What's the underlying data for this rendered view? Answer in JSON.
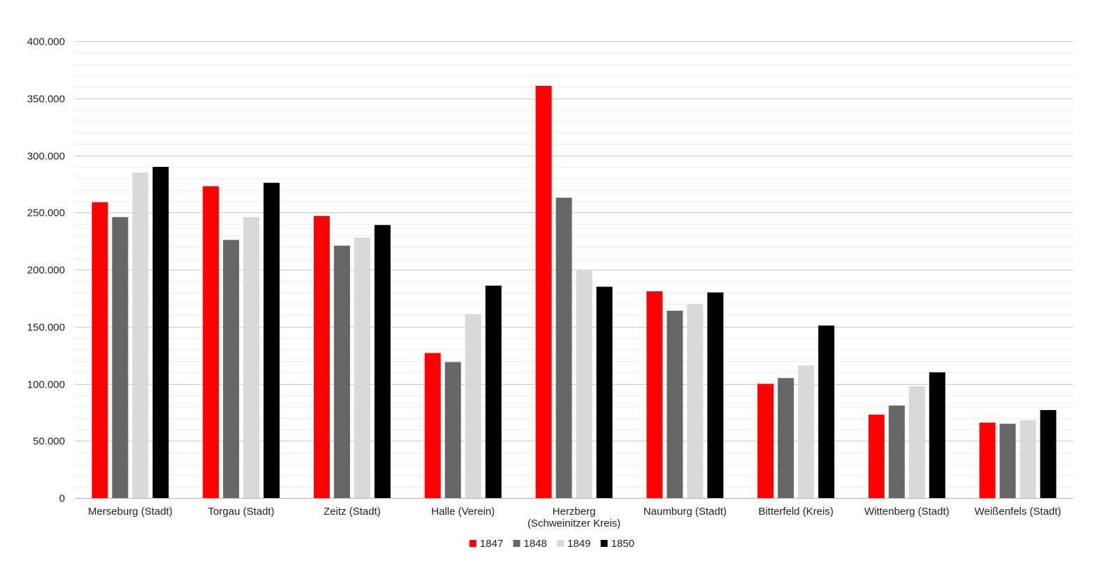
{
  "chart_data": {
    "type": "bar",
    "title": "",
    "xlabel": "",
    "ylabel": "",
    "ylim": [
      0,
      400000
    ],
    "yticks": [
      0,
      50000,
      100000,
      150000,
      200000,
      250000,
      300000,
      350000,
      400000
    ],
    "ytick_labels": [
      "0",
      "50.000",
      "100.000",
      "150.000",
      "200.000",
      "250.000",
      "300.000",
      "350.000",
      "400.000"
    ],
    "minor_grid_step": 10000,
    "grid": true,
    "legend_position": "bottom",
    "categories": [
      [
        "Merseburg (Stadt)"
      ],
      [
        "Torgau (Stadt)"
      ],
      [
        "Zeitz (Stadt)"
      ],
      [
        "Halle (Verein)"
      ],
      [
        "Herzberg",
        "(Schweinitzer Kreis)"
      ],
      [
        "Naumburg (Stadt)"
      ],
      [
        "Bitterfeld (Kreis)"
      ],
      [
        "Wittenberg (Stadt)"
      ],
      [
        "Weißenfels (Stadt)"
      ]
    ],
    "series": [
      {
        "name": "1847",
        "color": "#ff0000",
        "values": [
          259000,
          273000,
          247000,
          127000,
          361000,
          181000,
          100000,
          73000,
          66000
        ]
      },
      {
        "name": "1848",
        "color": "#666666",
        "values": [
          246000,
          226000,
          221000,
          119000,
          263000,
          164000,
          105000,
          81000,
          65000
        ]
      },
      {
        "name": "1849",
        "color": "#d9d9d9",
        "values": [
          285000,
          246000,
          228000,
          161000,
          200000,
          170000,
          116000,
          98000,
          68000
        ]
      },
      {
        "name": "1850",
        "color": "#000000",
        "values": [
          290000,
          276000,
          239000,
          186000,
          185000,
          180000,
          151000,
          110000,
          77000
        ]
      }
    ]
  }
}
